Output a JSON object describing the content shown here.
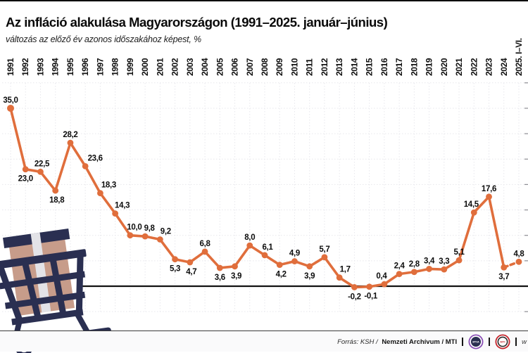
{
  "chart_data": {
    "type": "line",
    "title": "Az infláció alakulása Magyarországon (1991–2025. január–június)",
    "subtitle": "változás az előző év azonos időszakához képest, %",
    "categories": [
      "1991",
      "1992",
      "1993",
      "1994",
      "1995",
      "1996",
      "1997",
      "1998",
      "1999",
      "2000",
      "2001",
      "2002",
      "2003",
      "2004",
      "2005",
      "2006",
      "2007",
      "2008",
      "2009",
      "2010",
      "2011",
      "2012",
      "2013",
      "2014",
      "2015",
      "2016",
      "2017",
      "2018",
      "2019",
      "2020",
      "2021",
      "2022",
      "2023",
      "2024",
      "2025. I–VI."
    ],
    "values": [
      35.0,
      23.0,
      22.5,
      18.8,
      28.2,
      23.6,
      18.3,
      14.3,
      10.0,
      9.8,
      9.2,
      5.3,
      4.7,
      6.8,
      3.6,
      3.9,
      8.0,
      6.1,
      4.2,
      4.9,
      3.9,
      5.7,
      1.7,
      -0.2,
      -0.1,
      0.4,
      2.4,
      2.8,
      3.4,
      3.3,
      5.1,
      14.5,
      17.6,
      3.7,
      4.8
    ],
    "labels": [
      "35,0",
      "23,0",
      "22,5",
      "18,8",
      "28,2",
      "23,6",
      "18,3",
      "14,3",
      "10,0",
      "9,8",
      "9,2",
      "5,3",
      "4,7",
      "6,8",
      "3,6",
      "3,9",
      "8,0",
      "6,1",
      "4,2",
      "4,9",
      "3,9",
      "5,7",
      "1,7",
      "-0,2",
      "-0,1",
      "0,4",
      "2,4",
      "2,8",
      "3,4",
      "3,3",
      "5,1",
      "14,5",
      "17,6",
      "3,7",
      "4,8"
    ],
    "label_sides": [
      "above",
      "below",
      "above",
      "below",
      "above",
      "above",
      "above",
      "above",
      "above",
      "above",
      "above",
      "below",
      "below",
      "above",
      "below",
      "below",
      "above",
      "above",
      "below",
      "above",
      "below",
      "above",
      "above",
      "below",
      "below",
      "above",
      "above",
      "above",
      "above",
      "above",
      "above",
      "above",
      "above",
      "below",
      "above"
    ],
    "label_dx": [
      0,
      0,
      2,
      2,
      0,
      14,
      12,
      10,
      6,
      6,
      8,
      0,
      2,
      0,
      0,
      2,
      0,
      4,
      2,
      0,
      0,
      0,
      8,
      0,
      2,
      -4,
      0,
      0,
      0,
      0,
      0,
      -4,
      0,
      0,
      0
    ],
    "ylim": [
      -5,
      40
    ],
    "grid_step": 5,
    "grid_on": true,
    "legend": "none",
    "zero_line": true,
    "last_segment_dashed": true,
    "series_color": "#E06E3C",
    "decimal_separator": ","
  },
  "footer": {
    "source_prefix": "Forrás: KSH / ",
    "source_bold": "Nemzeti Archívum / MTI",
    "partial_url": "w",
    "logos": [
      {
        "name": "mtva-logo",
        "text": "MTVA",
        "ring_color": "#8A4FB5",
        "center_color": "#2A2F51"
      },
      {
        "name": "mti-logo",
        "text": "MTI",
        "ring_color": "#C4242B",
        "center_color": "#ffffff"
      }
    ]
  },
  "decor": {
    "cart_colors": {
      "navy": "#2A2F51",
      "box": "#C79C8A",
      "stripe": "#E3E3E7"
    }
  }
}
